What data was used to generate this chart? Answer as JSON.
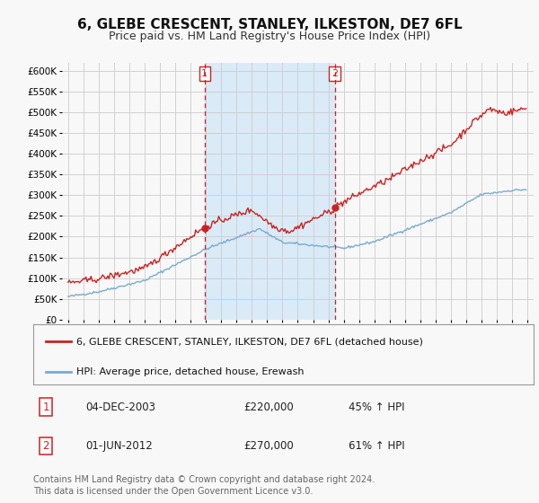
{
  "title": "6, GLEBE CRESCENT, STANLEY, ILKESTON, DE7 6FL",
  "subtitle": "Price paid vs. HM Land Registry's House Price Index (HPI)",
  "ylim": [
    0,
    620000
  ],
  "yticks": [
    0,
    50000,
    100000,
    150000,
    200000,
    250000,
    300000,
    350000,
    400000,
    450000,
    500000,
    550000,
    600000
  ],
  "ytick_labels": [
    "£0",
    "£50K",
    "£100K",
    "£150K",
    "£200K",
    "£250K",
    "£300K",
    "£350K",
    "£400K",
    "£450K",
    "£500K",
    "£550K",
    "£600K"
  ],
  "background_color": "#f8f8f8",
  "plot_bg_color": "#f8f8f8",
  "grid_color": "#cccccc",
  "red_line_color": "#cc2222",
  "blue_line_color": "#7aabce",
  "shaded_color": "#daeaf7",
  "marker1_price": 220000,
  "marker2_price": 270000,
  "sale1_year": 2003.92,
  "sale2_year": 2012.42,
  "legend_red": "6, GLEBE CRESCENT, STANLEY, ILKESTON, DE7 6FL (detached house)",
  "legend_blue": "HPI: Average price, detached house, Erewash",
  "table_row1": [
    "1",
    "04-DEC-2003",
    "£220,000",
    "45% ↑ HPI"
  ],
  "table_row2": [
    "2",
    "01-JUN-2012",
    "£270,000",
    "61% ↑ HPI"
  ],
  "footer": "Contains HM Land Registry data © Crown copyright and database right 2024.\nThis data is licensed under the Open Government Licence v3.0.",
  "title_fontsize": 11,
  "subtitle_fontsize": 9,
  "tick_fontsize": 7.5
}
